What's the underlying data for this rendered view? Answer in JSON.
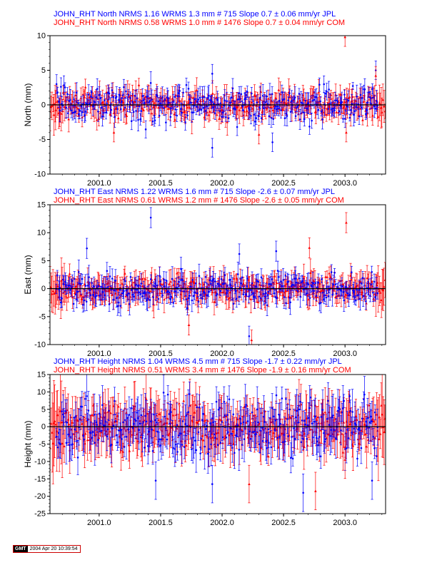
{
  "panels": [
    {
      "id": "north",
      "header_line1": "JOHN_RHT North NRMS 1.16 WRMS  1.3 mm # 715 Slope    0.7 ±  0.06 mm/yr JPL",
      "header_line2": "JOHN_RHT North NRMS 0.58 WRMS  1.0 mm # 1476 Slope    0.7 ±  0.04 mm/yr COM",
      "ylabel": "North (mm)",
      "ylim": [
        -10,
        10
      ],
      "yticks": [
        -10,
        -5,
        0,
        5,
        10
      ],
      "spread": 1.2,
      "err": 1.5,
      "seed": 11,
      "outliers": [
        {
          "x": 2001.92,
          "y": -6.2,
          "series": "blue"
        },
        {
          "x": 2001.92,
          "y": 4.5,
          "series": "blue"
        },
        {
          "x": 2002.41,
          "y": -5.4,
          "series": "blue"
        },
        {
          "x": 2003.0,
          "y": 9.8,
          "series": "red"
        },
        {
          "x": 2003.25,
          "y": 5.0,
          "series": "blue"
        },
        {
          "x": 2003.25,
          "y": 4.2,
          "series": "red"
        },
        {
          "x": 2001.12,
          "y": -4.0,
          "series": "red"
        },
        {
          "x": 2002.3,
          "y": -4.3,
          "series": "red"
        },
        {
          "x": 2003.01,
          "y": -4.0,
          "series": "red"
        }
      ]
    },
    {
      "id": "east",
      "header_line1": "JOHN_RHT East NRMS 1.22 WRMS  1.6 mm # 715 Slope   -2.6 ±  0.07 mm/yr JPL",
      "header_line2": "JOHN_RHT East NRMS 0.61 WRMS  1.2 mm # 1476 Slope   -2.6 ±  0.05 mm/yr COM",
      "ylabel": "East (mm)",
      "ylim": [
        -10,
        15
      ],
      "yticks": [
        -10,
        -5,
        0,
        5,
        10,
        15
      ],
      "spread": 1.4,
      "err": 2.0,
      "seed": 23,
      "outliers": [
        {
          "x": 2001.42,
          "y": 12.7,
          "series": "blue"
        },
        {
          "x": 2003.01,
          "y": 11.8,
          "series": "red"
        },
        {
          "x": 2000.9,
          "y": 7.2,
          "series": "blue"
        },
        {
          "x": 2002.14,
          "y": 6.2,
          "series": "blue"
        },
        {
          "x": 2002.71,
          "y": 7.3,
          "series": "red"
        },
        {
          "x": 2002.22,
          "y": -8.5,
          "series": "blue"
        },
        {
          "x": 2002.24,
          "y": -9.2,
          "series": "red"
        },
        {
          "x": 2001.73,
          "y": -6.5,
          "series": "red"
        },
        {
          "x": 2002.44,
          "y": 6.7,
          "series": "blue"
        }
      ]
    },
    {
      "id": "height",
      "header_line1": "JOHN_RHT Height NRMS 1.04 WRMS  4.5 mm # 715 Slope   -1.7 ±  0.22 mm/yr JPL",
      "header_line2": "JOHN_RHT Height NRMS 0.51 WRMS  3.4 mm # 1476 Slope   -1.9 ±  0.16 mm/yr COM",
      "ylabel": "Height (mm)",
      "ylim": [
        -25,
        15
      ],
      "yticks": [
        -25,
        -20,
        -15,
        -10,
        -5,
        0,
        5,
        10,
        15
      ],
      "spread": 4.0,
      "err": 6.0,
      "seed": 37,
      "outliers": [
        {
          "x": 2001.92,
          "y": -16.5,
          "series": "blue"
        },
        {
          "x": 2001.46,
          "y": -15.5,
          "series": "blue"
        },
        {
          "x": 2002.66,
          "y": -19.0,
          "series": "blue"
        },
        {
          "x": 2002.76,
          "y": -18.5,
          "series": "red"
        },
        {
          "x": 2003.0,
          "y": -9.5,
          "series": "red"
        },
        {
          "x": 2003.22,
          "y": -15.5,
          "series": "blue"
        },
        {
          "x": 2002.22,
          "y": -16.5,
          "series": "red"
        }
      ]
    }
  ],
  "x_axis": {
    "xlim": [
      2000.6,
      2003.33
    ],
    "ticks": [
      "2001.0",
      "2001.5",
      "2002.0",
      "2002.5",
      "2003.0"
    ]
  },
  "chart_data": [
    {
      "type": "scatter",
      "title": "JOHN_RHT North NRMS 1.16 WRMS  1.3 mm # 715 Slope    0.7 ±  0.06 mm/yr JPL / JOHN_RHT North NRMS 0.58 WRMS  1.0 mm # 1476 Slope    0.7 ±  0.04 mm/yr COM",
      "ylabel": "North (mm)",
      "ylim": [
        -10,
        10
      ],
      "xlim": [
        2000.6,
        2003.33
      ],
      "series": [
        {
          "name": "JPL",
          "color": "#0000ff",
          "count": 715,
          "wrms_mm": 1.3,
          "nrms": 1.16,
          "slope_mm_yr": 0.7,
          "slope_sigma": 0.06
        },
        {
          "name": "COM",
          "color": "#ff0000",
          "count": 1476,
          "wrms_mm": 1.0,
          "nrms": 0.58,
          "slope_mm_yr": 0.7,
          "slope_sigma": 0.04
        }
      ]
    },
    {
      "type": "scatter",
      "title": "JOHN_RHT East NRMS 1.22 WRMS  1.6 mm # 715 Slope   -2.6 ±  0.07 mm/yr JPL / JOHN_RHT East NRMS 0.61 WRMS  1.2 mm # 1476 Slope   -2.6 ±  0.05 mm/yr COM",
      "ylabel": "East (mm)",
      "ylim": [
        -10,
        15
      ],
      "xlim": [
        2000.6,
        2003.33
      ],
      "series": [
        {
          "name": "JPL",
          "color": "#0000ff",
          "count": 715,
          "wrms_mm": 1.6,
          "nrms": 1.22,
          "slope_mm_yr": -2.6,
          "slope_sigma": 0.07
        },
        {
          "name": "COM",
          "color": "#ff0000",
          "count": 1476,
          "wrms_mm": 1.2,
          "nrms": 0.61,
          "slope_mm_yr": -2.6,
          "slope_sigma": 0.05
        }
      ]
    },
    {
      "type": "scatter",
      "title": "JOHN_RHT Height NRMS 1.04 WRMS  4.5 mm # 715 Slope   -1.7 ±  0.22 mm/yr JPL / JOHN_RHT Height NRMS 0.51 WRMS  3.4 mm # 1476 Slope   -1.9 ±  0.16 mm/yr COM",
      "ylabel": "Height (mm)",
      "ylim": [
        -25,
        15
      ],
      "xlim": [
        2000.6,
        2003.33
      ],
      "series": [
        {
          "name": "JPL",
          "color": "#0000ff",
          "count": 715,
          "wrms_mm": 4.5,
          "nrms": 1.04,
          "slope_mm_yr": -1.7,
          "slope_sigma": 0.22
        },
        {
          "name": "COM",
          "color": "#ff0000",
          "count": 1476,
          "wrms_mm": 3.4,
          "nrms": 0.51,
          "slope_mm_yr": -1.9,
          "slope_sigma": 0.16
        }
      ]
    }
  ],
  "colors": {
    "jpl": "#0000ff",
    "com": "#ff0000",
    "zero_line": "#000000"
  },
  "footer": {
    "logo_text": "GMT",
    "timestamp": "2004 Apr 20 10:39:54"
  }
}
